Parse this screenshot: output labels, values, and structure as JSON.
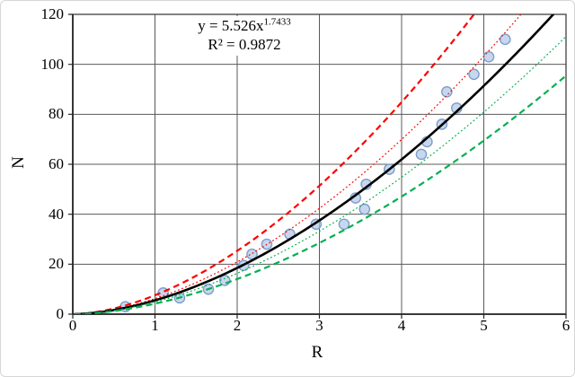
{
  "figure": {
    "background": "#ffffff",
    "frame_border": "#d6d6d6"
  },
  "chart_data": {
    "type": "scatter",
    "title": "",
    "xlabel": "R",
    "ylabel": "N",
    "xlim": [
      0,
      6
    ],
    "ylim": [
      0,
      120
    ],
    "x_ticks": [
      "0",
      "1",
      "2",
      "3",
      "4",
      "5",
      "6"
    ],
    "y_ticks": [
      "0",
      "20",
      "40",
      "60",
      "80",
      "100",
      "120"
    ],
    "grid": true,
    "legend_position": "none",
    "grid_color": "#595959",
    "axis_color": "#262626",
    "annotation": {
      "line1_base": "y = 5.526x",
      "line1_exponent": "1.7433",
      "line2": "R² = 0.9872"
    },
    "points": [
      [
        0.64,
        3
      ],
      [
        1.1,
        8.5
      ],
      [
        1.3,
        6.5
      ],
      [
        1.65,
        10
      ],
      [
        1.85,
        13.5
      ],
      [
        2.08,
        19.5
      ],
      [
        2.18,
        24
      ],
      [
        2.36,
        28
      ],
      [
        2.64,
        32
      ],
      [
        2.96,
        36
      ],
      [
        3.3,
        36
      ],
      [
        3.55,
        42
      ],
      [
        3.44,
        46.5
      ],
      [
        3.57,
        52
      ],
      [
        3.85,
        58
      ],
      [
        4.24,
        64
      ],
      [
        4.31,
        69
      ],
      [
        4.49,
        76
      ],
      [
        4.67,
        82.5
      ],
      [
        4.55,
        89
      ],
      [
        4.88,
        96
      ],
      [
        5.06,
        103
      ],
      [
        5.26,
        110
      ]
    ],
    "marker": {
      "fill": "#b4c7e7",
      "stroke": "#7d9ec8",
      "radius": 5.6,
      "opacity": 0.72
    },
    "curves": [
      {
        "name": "upper-outer-band",
        "color": "#ff0000",
        "style": "dashed",
        "width": 2.2,
        "coefficient": 7.57,
        "exponent": 1.7433
      },
      {
        "name": "upper-inner-band",
        "color": "#ff0000",
        "style": "dotted",
        "width": 1.2,
        "coefficient": 6.24,
        "exponent": 1.7433
      },
      {
        "name": "power-fit",
        "color": "#000000",
        "style": "solid",
        "width": 2.6,
        "coefficient": 5.526,
        "exponent": 1.7433
      },
      {
        "name": "lower-inner-band",
        "color": "#00b050",
        "style": "dotted",
        "width": 1.2,
        "coefficient": 4.89,
        "exponent": 1.7433
      },
      {
        "name": "lower-outer-band",
        "color": "#00b050",
        "style": "dashed",
        "width": 2.2,
        "coefficient": 4.2,
        "exponent": 1.7433
      }
    ]
  }
}
